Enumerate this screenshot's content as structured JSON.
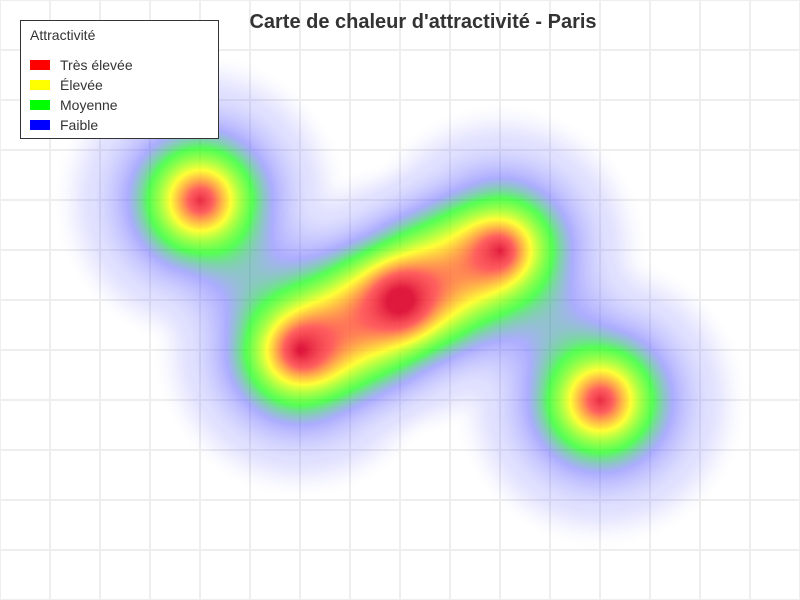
{
  "title": "Carte de chaleur d'attractivité - Paris",
  "legend": {
    "title": "Attractivité",
    "items": [
      {
        "label": "Très élevée",
        "color": "#ff0000"
      },
      {
        "label": "Élevée",
        "color": "#ffff00"
      },
      {
        "label": "Moyenne",
        "color": "#00ff00"
      },
      {
        "label": "Faible",
        "color": "#0000ff"
      }
    ]
  },
  "hotspot_count": 5,
  "colors": {
    "grid_line": "#eeeeee",
    "text": "#333333",
    "legend_border": "#333333"
  }
}
